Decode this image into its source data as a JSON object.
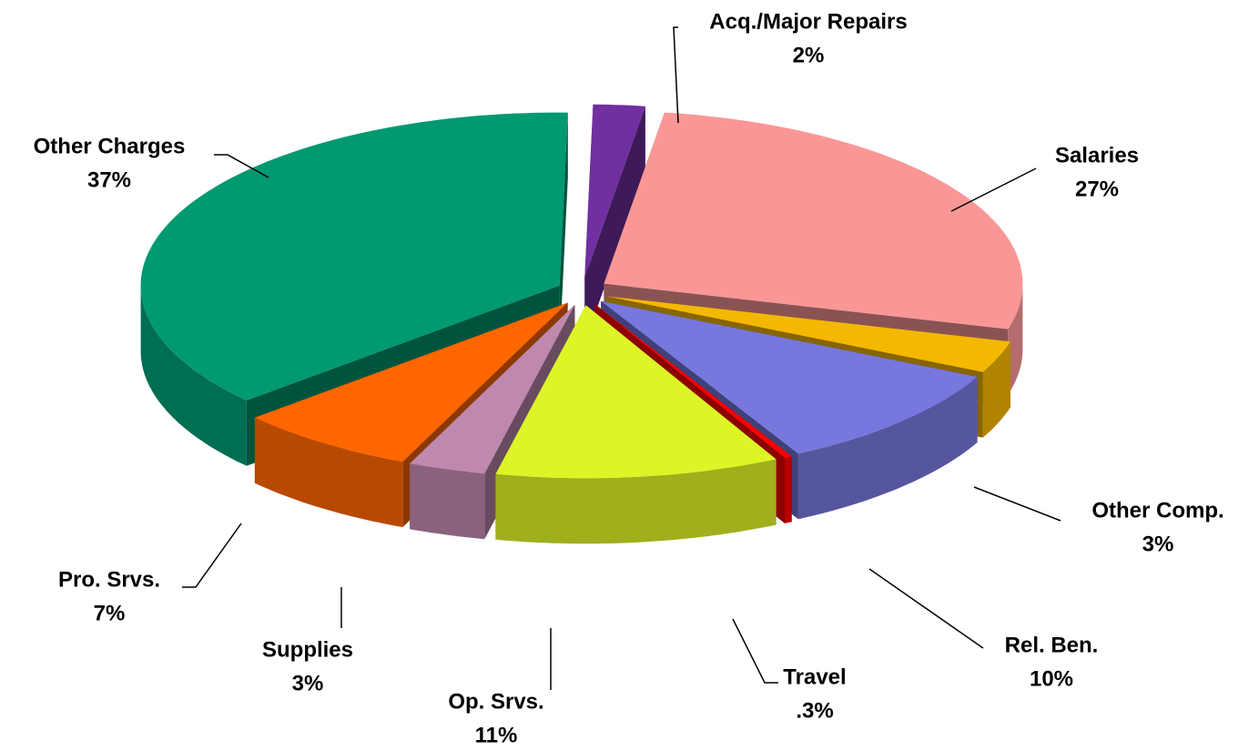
{
  "chart_data": {
    "type": "pie",
    "categories": [
      "Acq./Major Repairs",
      "Salaries",
      "Other Comp.",
      "Rel. Ben.",
      "Travel",
      "Op. Srvs.",
      "Supplies",
      "Pro. Srvs.",
      "Other Charges"
    ],
    "values": [
      2,
      27,
      3,
      10,
      0.3,
      11,
      3,
      7,
      37
    ],
    "value_labels": [
      "2%",
      "27%",
      "3%",
      "10%",
      ".3%",
      "11%",
      "3%",
      "7%",
      "37%"
    ],
    "colors": [
      "#7030a0",
      "#fa9796",
      "#f5b800",
      "#7777dd",
      "#ff0000",
      "#ddf527",
      "#bf88ae",
      "#ff6600",
      "#009970"
    ]
  }
}
